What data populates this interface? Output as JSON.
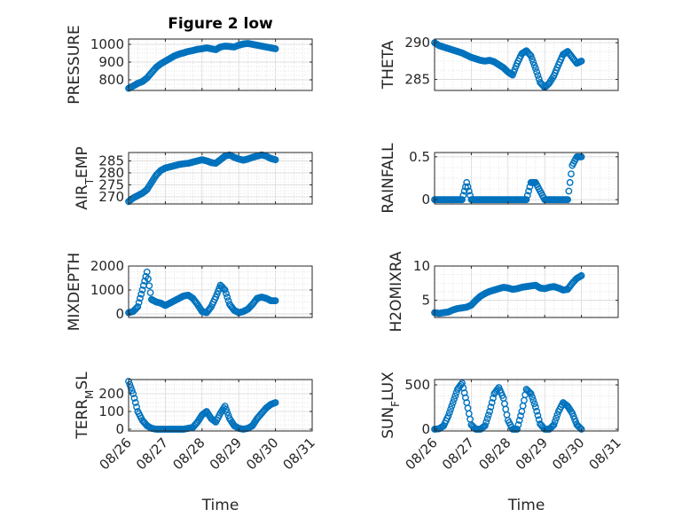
{
  "figure": {
    "title": "Figure 2 low",
    "marker_color": "#0072BD",
    "grid_color": "#d9d9d9",
    "axis_color": "#262626"
  },
  "chart_data": [
    {
      "type": "scatter",
      "id": "pressure",
      "title": "Figure 2 low",
      "ylabel": "PRESSURE",
      "xlabel": "",
      "xlim": [
        "08/26",
        "08/31"
      ],
      "ylim": [
        740,
        1030
      ],
      "yticks": [
        800,
        900,
        1000
      ],
      "ytick_labels": [
        "800",
        "900",
        "1000"
      ],
      "xticks": [
        "08/26",
        "08/27",
        "08/28",
        "08/29",
        "08/30",
        "08/31"
      ],
      "show_xtick_labels": false,
      "grid": "on",
      "marker": "circle",
      "series": [
        {
          "x": [
            "08/26 00:00",
            "08/26 03:00",
            "08/26 06:00",
            "08/26 09:00",
            "08/26 12:00",
            "08/26 15:00",
            "08/26 18:00",
            "08/26 21:00",
            "08/27 00:00",
            "08/27 03:00",
            "08/27 06:00",
            "08/27 09:00",
            "08/27 12:00",
            "08/27 15:00",
            "08/27 18:00",
            "08/27 21:00",
            "08/28 00:00",
            "08/28 03:00",
            "08/28 06:00",
            "08/28 09:00",
            "08/28 12:00",
            "08/28 15:00",
            "08/28 18:00",
            "08/28 21:00",
            "08/29 00:00",
            "08/29 03:00",
            "08/29 06:00",
            "08/29 09:00",
            "08/29 12:00",
            "08/29 15:00",
            "08/29 18:00",
            "08/29 21:00",
            "08/30 00:00"
          ],
          "y": [
            752,
            765,
            780,
            790,
            810,
            840,
            870,
            890,
            905,
            920,
            935,
            945,
            952,
            960,
            965,
            972,
            975,
            980,
            975,
            970,
            985,
            990,
            988,
            985,
            995,
            1002,
            1005,
            1000,
            995,
            990,
            985,
            980,
            975
          ]
        }
      ]
    },
    {
      "type": "scatter",
      "id": "theta",
      "ylabel": "THETA",
      "xlabel": "",
      "xlim": [
        "08/26",
        "08/31"
      ],
      "ylim": [
        283.5,
        290.5
      ],
      "yticks": [
        285,
        290
      ],
      "ytick_labels": [
        "285",
        "290"
      ],
      "xticks": [
        "08/26",
        "08/27",
        "08/28",
        "08/29",
        "08/30",
        "08/31"
      ],
      "show_xtick_labels": false,
      "grid": "on",
      "marker": "circle",
      "series": [
        {
          "x": [
            "08/26 00:00",
            "08/26 03:00",
            "08/26 06:00",
            "08/26 09:00",
            "08/26 12:00",
            "08/26 15:00",
            "08/26 18:00",
            "08/26 21:00",
            "08/27 00:00",
            "08/27 03:00",
            "08/27 06:00",
            "08/27 09:00",
            "08/27 12:00",
            "08/27 15:00",
            "08/27 18:00",
            "08/27 21:00",
            "08/28 00:00",
            "08/28 03:00",
            "08/28 06:00",
            "08/28 09:00",
            "08/28 12:00",
            "08/28 15:00",
            "08/28 18:00",
            "08/28 21:00",
            "08/29 00:00",
            "08/29 03:00",
            "08/29 06:00",
            "08/29 09:00",
            "08/29 12:00",
            "08/29 15:00",
            "08/29 18:00",
            "08/29 21:00",
            "08/30 00:00"
          ],
          "y": [
            290,
            289.6,
            289.4,
            289.2,
            289,
            288.8,
            288.6,
            288.3,
            288,
            287.8,
            287.6,
            287.5,
            287.6,
            287.4,
            287,
            286.6,
            286,
            285.6,
            287.2,
            288.5,
            288.9,
            288.2,
            286.5,
            284.6,
            283.9,
            284.5,
            285.5,
            287,
            288.4,
            288.8,
            288,
            287.2,
            287.5
          ]
        }
      ]
    },
    {
      "type": "scatter",
      "id": "air_temp",
      "ylabel": "AIR_TEMP",
      "xlabel": "",
      "xlim": [
        "08/26",
        "08/31"
      ],
      "ylim": [
        267,
        288.5
      ],
      "yticks": [
        270,
        275,
        280,
        285
      ],
      "ytick_labels": [
        "270",
        "275",
        "280",
        "285"
      ],
      "xticks": [
        "08/26",
        "08/27",
        "08/28",
        "08/29",
        "08/30",
        "08/31"
      ],
      "show_xtick_labels": false,
      "grid": "on",
      "marker": "circle",
      "series": [
        {
          "x": [
            "08/26 00:00",
            "08/26 03:00",
            "08/26 06:00",
            "08/26 09:00",
            "08/26 12:00",
            "08/26 15:00",
            "08/26 18:00",
            "08/26 21:00",
            "08/27 00:00",
            "08/27 03:00",
            "08/27 06:00",
            "08/27 09:00",
            "08/27 12:00",
            "08/27 15:00",
            "08/27 18:00",
            "08/27 21:00",
            "08/28 00:00",
            "08/28 03:00",
            "08/28 06:00",
            "08/28 09:00",
            "08/28 12:00",
            "08/28 15:00",
            "08/28 18:00",
            "08/28 21:00",
            "08/29 00:00",
            "08/29 03:00",
            "08/29 06:00",
            "08/29 09:00",
            "08/29 12:00",
            "08/29 15:00",
            "08/29 18:00",
            "08/29 21:00",
            "08/30 00:00"
          ],
          "y": [
            268,
            269.5,
            270.5,
            271.5,
            273,
            276,
            279,
            281,
            282,
            282.5,
            283,
            283.5,
            283.8,
            284,
            284.5,
            285,
            285.5,
            285,
            284.3,
            284,
            285.5,
            287,
            287.5,
            286.5,
            285.8,
            285.3,
            285.8,
            286.5,
            287,
            287.5,
            287,
            286,
            285.5
          ]
        }
      ]
    },
    {
      "type": "scatter",
      "id": "rainfall",
      "ylabel": "RAINFALL",
      "xlabel": "",
      "xlim": [
        "08/26",
        "08/31"
      ],
      "ylim": [
        -0.05,
        0.55
      ],
      "yticks": [
        0,
        0.5
      ],
      "ytick_labels": [
        "0",
        "0.5"
      ],
      "xticks": [
        "08/26",
        "08/27",
        "08/28",
        "08/29",
        "08/30",
        "08/31"
      ],
      "show_xtick_labels": false,
      "grid": "on",
      "marker": "circle",
      "series": [
        {
          "x": [
            "08/26 00:00",
            "08/26 03:00",
            "08/26 06:00",
            "08/26 09:00",
            "08/26 12:00",
            "08/26 15:00",
            "08/26 18:00",
            "08/26 21:00",
            "08/27 00:00",
            "08/27 03:00",
            "08/27 06:00",
            "08/27 09:00",
            "08/27 12:00",
            "08/27 15:00",
            "08/27 18:00",
            "08/27 21:00",
            "08/28 00:00",
            "08/28 03:00",
            "08/28 06:00",
            "08/28 09:00",
            "08/28 12:00",
            "08/28 15:00",
            "08/28 18:00",
            "08/28 21:00",
            "08/29 00:00",
            "08/29 03:00",
            "08/29 06:00",
            "08/29 09:00",
            "08/29 12:00",
            "08/29 15:00",
            "08/29 18:00",
            "08/29 21:00",
            "08/30 00:00"
          ],
          "y": [
            0,
            0,
            0,
            0,
            0,
            0,
            0,
            0.2,
            0,
            0,
            0,
            0,
            0,
            0,
            0,
            0,
            0,
            0,
            0,
            0,
            0,
            0.2,
            0.2,
            0.1,
            0,
            0,
            0,
            0,
            0,
            0,
            0.4,
            0.5,
            0.5
          ]
        }
      ]
    },
    {
      "type": "scatter",
      "id": "mixdepth",
      "ylabel": "MIXDEPTH",
      "xlabel": "",
      "xlim": [
        "08/26",
        "08/31"
      ],
      "ylim": [
        -150,
        2000
      ],
      "yticks": [
        0,
        1000,
        2000
      ],
      "ytick_labels": [
        "0",
        "1000",
        "2000"
      ],
      "xticks": [
        "08/26",
        "08/27",
        "08/28",
        "08/29",
        "08/30",
        "08/31"
      ],
      "show_xtick_labels": false,
      "grid": "on",
      "marker": "circle",
      "series": [
        {
          "x": [
            "08/26 00:00",
            "08/26 03:00",
            "08/26 06:00",
            "08/26 09:00",
            "08/26 12:00",
            "08/26 15:00",
            "08/26 18:00",
            "08/26 21:00",
            "08/27 00:00",
            "08/27 03:00",
            "08/27 06:00",
            "08/27 09:00",
            "08/27 12:00",
            "08/27 15:00",
            "08/27 18:00",
            "08/27 21:00",
            "08/28 00:00",
            "08/28 03:00",
            "08/28 06:00",
            "08/28 09:00",
            "08/28 12:00",
            "08/28 15:00",
            "08/28 18:00",
            "08/28 21:00",
            "08/29 00:00",
            "08/29 03:00",
            "08/29 06:00",
            "08/29 09:00",
            "08/29 12:00",
            "08/29 15:00",
            "08/29 18:00",
            "08/29 21:00",
            "08/30 00:00"
          ],
          "y": [
            50,
            100,
            300,
            1000,
            1750,
            600,
            500,
            450,
            350,
            450,
            550,
            650,
            750,
            780,
            650,
            400,
            100,
            50,
            300,
            700,
            1200,
            1000,
            400,
            150,
            50,
            100,
            200,
            400,
            650,
            700,
            650,
            550,
            550
          ]
        }
      ]
    },
    {
      "type": "scatter",
      "id": "h2omixra",
      "ylabel": "H2OMIXRA",
      "xlabel": "",
      "xlim": [
        "08/26",
        "08/31"
      ],
      "ylim": [
        2.5,
        10
      ],
      "yticks": [
        5,
        10
      ],
      "ytick_labels": [
        "5",
        "10"
      ],
      "xticks": [
        "08/26",
        "08/27",
        "08/28",
        "08/29",
        "08/30",
        "08/31"
      ],
      "show_xtick_labels": false,
      "grid": "on",
      "marker": "circle",
      "series": [
        {
          "x": [
            "08/26 00:00",
            "08/26 03:00",
            "08/26 06:00",
            "08/26 09:00",
            "08/26 12:00",
            "08/26 15:00",
            "08/26 18:00",
            "08/26 21:00",
            "08/27 00:00",
            "08/27 03:00",
            "08/27 06:00",
            "08/27 09:00",
            "08/27 12:00",
            "08/27 15:00",
            "08/27 18:00",
            "08/27 21:00",
            "08/28 00:00",
            "08/28 03:00",
            "08/28 06:00",
            "08/28 09:00",
            "08/28 12:00",
            "08/28 15:00",
            "08/28 18:00",
            "08/28 21:00",
            "08/29 00:00",
            "08/29 03:00",
            "08/29 06:00",
            "08/29 09:00",
            "08/29 12:00",
            "08/29 15:00",
            "08/29 18:00",
            "08/29 21:00",
            "08/30 00:00"
          ],
          "y": [
            3.2,
            3.1,
            3.2,
            3.3,
            3.6,
            3.8,
            3.9,
            4.0,
            4.3,
            5.0,
            5.6,
            6.0,
            6.3,
            6.5,
            6.7,
            6.9,
            6.8,
            6.6,
            6.7,
            6.9,
            7.0,
            7.1,
            7.2,
            6.8,
            6.7,
            6.9,
            7.0,
            6.8,
            6.5,
            6.6,
            7.5,
            8.2,
            8.6
          ]
        }
      ]
    },
    {
      "type": "scatter",
      "id": "terr_msl",
      "ylabel": "TERR_MSL",
      "xlabel": "Time",
      "xlim": [
        "08/26",
        "08/31"
      ],
      "ylim": [
        -10,
        280
      ],
      "yticks": [
        0,
        100,
        200
      ],
      "ytick_labels": [
        "0",
        "100",
        "200"
      ],
      "xticks": [
        "08/26",
        "08/27",
        "08/28",
        "08/29",
        "08/30",
        "08/31"
      ],
      "show_xtick_labels": true,
      "grid": "on",
      "marker": "circle",
      "series": [
        {
          "x": [
            "08/26 00:00",
            "08/26 03:00",
            "08/26 06:00",
            "08/26 09:00",
            "08/26 12:00",
            "08/26 15:00",
            "08/26 18:00",
            "08/26 21:00",
            "08/27 00:00",
            "08/27 03:00",
            "08/27 06:00",
            "08/27 09:00",
            "08/27 12:00",
            "08/27 15:00",
            "08/27 18:00",
            "08/27 21:00",
            "08/28 00:00",
            "08/28 03:00",
            "08/28 06:00",
            "08/28 09:00",
            "08/28 12:00",
            "08/28 15:00",
            "08/28 18:00",
            "08/28 21:00",
            "08/29 00:00",
            "08/29 03:00",
            "08/29 06:00",
            "08/29 09:00",
            "08/29 12:00",
            "08/29 15:00",
            "08/29 18:00",
            "08/29 21:00",
            "08/30 00:00"
          ],
          "y": [
            270,
            200,
            100,
            50,
            20,
            5,
            0,
            0,
            0,
            0,
            0,
            0,
            0,
            5,
            10,
            40,
            80,
            100,
            60,
            40,
            90,
            130,
            60,
            20,
            5,
            0,
            5,
            20,
            60,
            90,
            120,
            140,
            150
          ]
        }
      ]
    },
    {
      "type": "scatter",
      "id": "sun_flux",
      "ylabel": "SUN_FLUX",
      "xlabel": "Time",
      "xlim": [
        "08/26",
        "08/31"
      ],
      "ylim": [
        -20,
        560
      ],
      "yticks": [
        0,
        500
      ],
      "ytick_labels": [
        "0",
        "500"
      ],
      "xticks": [
        "08/26",
        "08/27",
        "08/28",
        "08/29",
        "08/30",
        "08/31"
      ],
      "show_xtick_labels": true,
      "grid": "on",
      "marker": "circle",
      "series": [
        {
          "x": [
            "08/26 00:00",
            "08/26 03:00",
            "08/26 06:00",
            "08/26 09:00",
            "08/26 12:00",
            "08/26 15:00",
            "08/26 18:00",
            "08/26 21:00",
            "08/27 00:00",
            "08/27 03:00",
            "08/27 06:00",
            "08/27 09:00",
            "08/27 12:00",
            "08/27 15:00",
            "08/27 18:00",
            "08/27 21:00",
            "08/28 00:00",
            "08/28 03:00",
            "08/28 06:00",
            "08/28 09:00",
            "08/28 12:00",
            "08/28 15:00",
            "08/28 18:00",
            "08/28 21:00",
            "08/29 00:00",
            "08/29 03:00",
            "08/29 06:00",
            "08/29 09:00",
            "08/29 12:00",
            "08/29 15:00",
            "08/29 18:00",
            "08/29 21:00",
            "08/30 00:00"
          ],
          "y": [
            0,
            5,
            40,
            150,
            300,
            450,
            520,
            300,
            50,
            0,
            0,
            40,
            200,
            400,
            470,
            350,
            100,
            0,
            0,
            200,
            450,
            400,
            250,
            60,
            0,
            0,
            50,
            200,
            300,
            260,
            180,
            50,
            0
          ]
        }
      ]
    }
  ]
}
